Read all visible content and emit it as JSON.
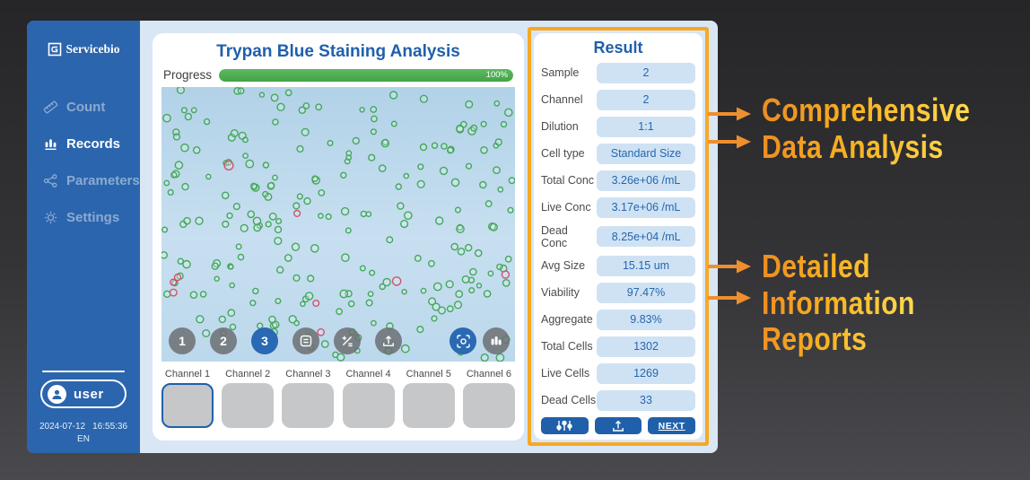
{
  "sidebar": {
    "logo_text": "Servicebio",
    "items": [
      {
        "label": "Count",
        "icon": "ruler-icon",
        "active": false
      },
      {
        "label": "Records",
        "icon": "bar-chart-icon",
        "active": true
      },
      {
        "label": "Parameters",
        "icon": "network-icon",
        "active": false
      },
      {
        "label": "Settings",
        "icon": "gear-icon",
        "active": false
      }
    ],
    "user_label": "user",
    "date": "2024-07-12",
    "time": "16:55:36",
    "language": "EN"
  },
  "main": {
    "title": "Trypan Blue Staining Analysis",
    "progress": {
      "label": "Progress",
      "value": 100,
      "percent_text": "100%"
    },
    "toolbar": {
      "pages": [
        "1",
        "2",
        "3"
      ],
      "active_page": "3",
      "icons": [
        "list-icon",
        "calc-icon",
        "export-icon",
        "focus-icon",
        "histogram-icon"
      ]
    },
    "channels": {
      "labels": [
        "Channel 1",
        "Channel 2",
        "Channel 3",
        "Channel 4",
        "Channel 5",
        "Channel 6"
      ],
      "selected_index": 0
    }
  },
  "result": {
    "title": "Result",
    "rows": [
      {
        "label": "Sample",
        "value": "2"
      },
      {
        "label": "Channel",
        "value": "2"
      },
      {
        "label": "Dilution",
        "value": "1:1"
      },
      {
        "label": "Cell type",
        "value": "Standard Size"
      },
      {
        "label": "Total Conc",
        "value": "3.26e+06 /mL"
      },
      {
        "label": "Live Conc",
        "value": "3.17e+06 /mL"
      },
      {
        "label": "Dead Conc",
        "value": "8.25e+04 /mL"
      },
      {
        "label": "Avg Size",
        "value": "15.15 um"
      },
      {
        "label": "Viability",
        "value": "97.47%"
      },
      {
        "label": "Aggregate",
        "value": "9.83%"
      },
      {
        "label": "Total Cells",
        "value": "1302"
      },
      {
        "label": "Live Cells",
        "value": "1269"
      },
      {
        "label": "Dead Cells",
        "value": "33"
      }
    ],
    "buttons": {
      "icons": [
        "sliders-icon",
        "upload-icon"
      ],
      "next_label": "NEXT"
    }
  },
  "annotations": {
    "callout1": {
      "lines": [
        "Comprehensive",
        "Data Analysis"
      ]
    },
    "callout2": {
      "lines": [
        "Detailed",
        "Information",
        "Reports"
      ]
    },
    "arrow_color": "#ee8f2e"
  },
  "microscopy": {
    "live_marker_color": "#43a85c",
    "dead_marker_color": "#cc5570",
    "live_markers_drawn": 235,
    "dead_markers_drawn": 9
  },
  "colors": {
    "sidebar_blue": "#2b65ae",
    "accent_blue": "#2060ab",
    "pill_blue": "#cfe2f4",
    "progress_green": "#4bae50",
    "highlight_orange": "#f7a823",
    "callout_gold": "#f7b322"
  }
}
